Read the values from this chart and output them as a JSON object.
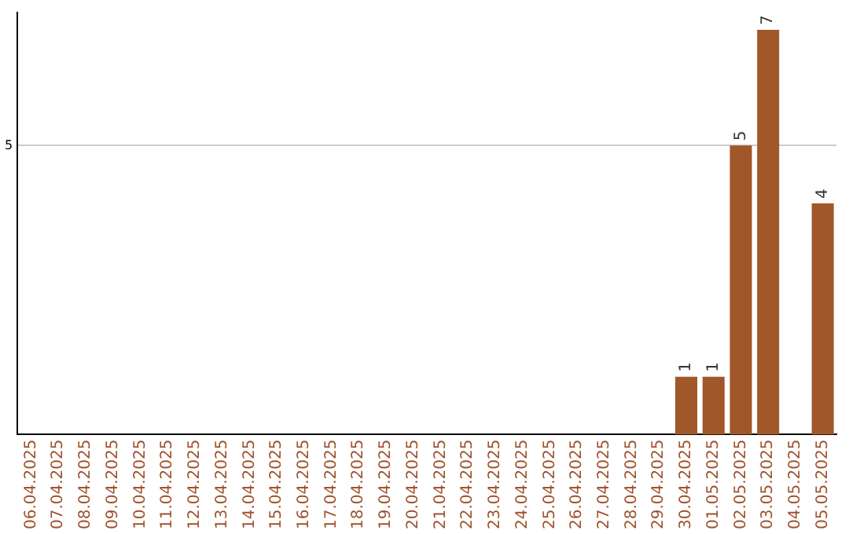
{
  "chart_data": {
    "type": "bar",
    "categories": [
      "06.04.2025",
      "07.04.2025",
      "08.04.2025",
      "09.04.2025",
      "10.04.2025",
      "11.04.2025",
      "12.04.2025",
      "13.04.2025",
      "14.04.2025",
      "15.04.2025",
      "16.04.2025",
      "17.04.2025",
      "18.04.2025",
      "19.04.2025",
      "20.04.2025",
      "21.04.2025",
      "22.04.2025",
      "23.04.2025",
      "24.04.2025",
      "25.04.2025",
      "26.04.2025",
      "27.04.2025",
      "28.04.2025",
      "29.04.2025",
      "30.04.2025",
      "01.05.2025",
      "02.05.2025",
      "03.05.2025",
      "04.05.2025",
      "05.05.2025"
    ],
    "values": [
      null,
      null,
      null,
      null,
      null,
      null,
      null,
      null,
      null,
      null,
      null,
      null,
      null,
      null,
      null,
      null,
      null,
      null,
      null,
      null,
      null,
      null,
      null,
      null,
      1,
      1,
      5,
      7,
      null,
      4
    ],
    "color": "#a0572a",
    "ylim": [
      0,
      7.3
    ],
    "yticks": [
      5
    ],
    "grid": "y",
    "data_labels": true,
    "legend": false
  }
}
